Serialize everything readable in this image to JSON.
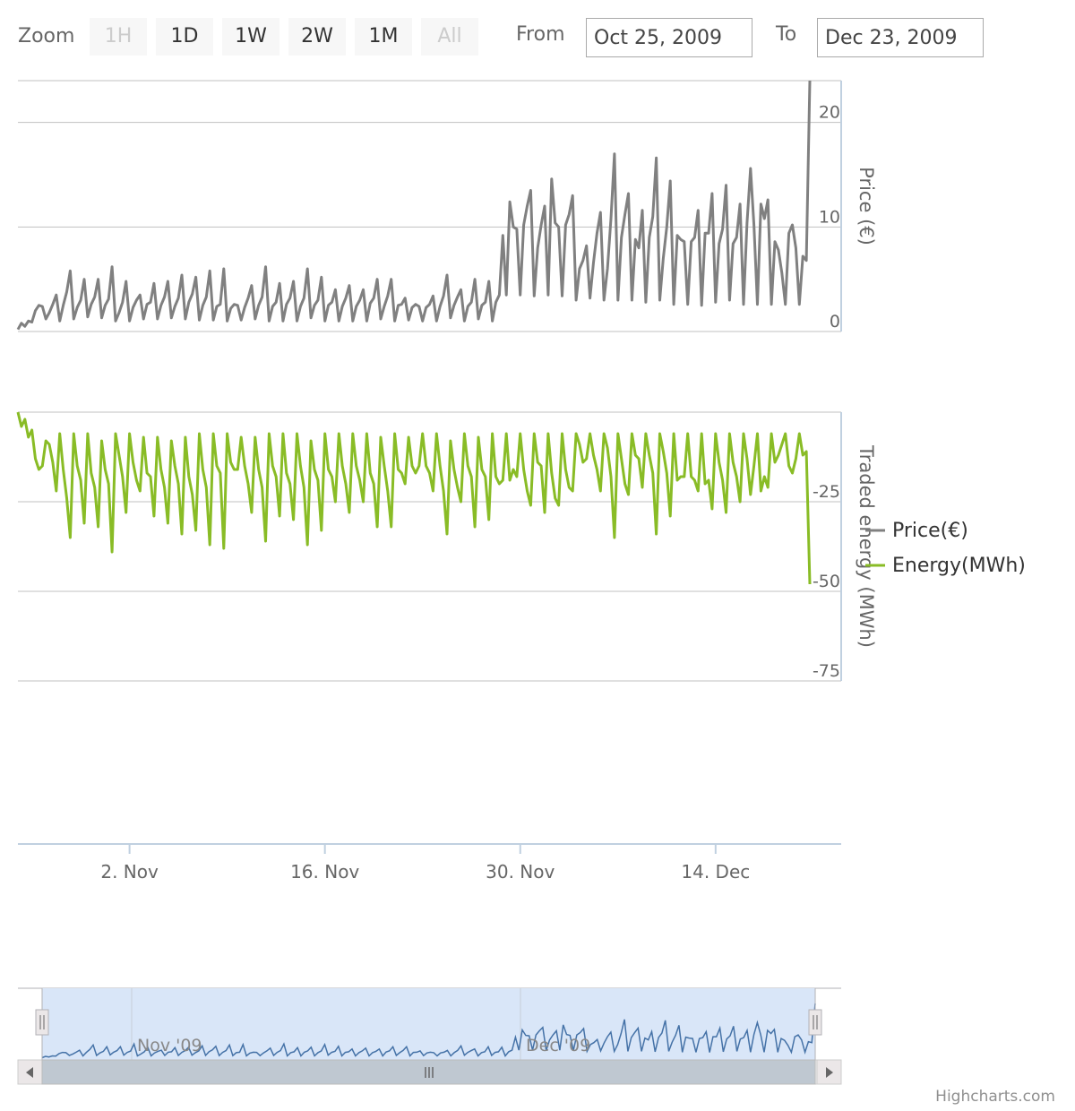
{
  "range_selector": {
    "zoom_label": "Zoom",
    "buttons": [
      {
        "label": "1H",
        "enabled": false
      },
      {
        "label": "1D",
        "enabled": true
      },
      {
        "label": "1W",
        "enabled": true
      },
      {
        "label": "2W",
        "enabled": true
      },
      {
        "label": "1M",
        "enabled": true
      },
      {
        "label": "All",
        "enabled": false
      }
    ],
    "from_label": "From",
    "from_value": "Oct 25, 2009",
    "to_label": "To",
    "to_value": "Dec 23, 2009"
  },
  "credit": "Highcharts.com",
  "colors": {
    "price": "#808080",
    "energy": "#89bc26",
    "navigator_series": "#4572a7",
    "navigator_mask": "#d9e6f8",
    "scrollbar": "#bfc8d1",
    "grid": "#c0c0c0",
    "axis": "#c0d0e0"
  },
  "chart_data": [
    {
      "type": "line",
      "title": "",
      "xlabel": "",
      "ylabel": "Price (€)",
      "ylim": [
        0,
        24
      ],
      "yticks": [
        0,
        10,
        20
      ],
      "series": [
        {
          "name": "Price(€)",
          "start": "2009-10-25",
          "step_hours": 6,
          "values": [
            0.2,
            0.8,
            0.5,
            1.0,
            0.9,
            2.0,
            2.5,
            2.4,
            1.2,
            1.8,
            2.6,
            3.5,
            1.0,
            2.5,
            3.8,
            5.8,
            1.2,
            2.3,
            3.0,
            5.0,
            1.4,
            2.6,
            3.3,
            5.0,
            1.3,
            2.5,
            3.1,
            6.2,
            1.0,
            1.8,
            2.8,
            4.8,
            1.0,
            2.3,
            3.0,
            3.5,
            1.2,
            2.6,
            2.8,
            4.6,
            1.2,
            2.5,
            3.3,
            4.8,
            1.3,
            2.4,
            3.2,
            5.4,
            1.2,
            2.8,
            3.6,
            5.2,
            1.1,
            2.5,
            3.3,
            5.8,
            1.1,
            2.4,
            2.6,
            6.0,
            1.0,
            2.2,
            2.6,
            2.5,
            1.1,
            2.3,
            3.2,
            4.4,
            1.2,
            2.5,
            3.3,
            6.2,
            1.0,
            2.4,
            2.8,
            4.6,
            1.0,
            2.6,
            3.2,
            4.8,
            1.0,
            2.4,
            3.2,
            6.0,
            1.3,
            2.5,
            3.0,
            5.2,
            1.0,
            2.5,
            2.8,
            4.0,
            1.0,
            2.4,
            3.2,
            4.4,
            1.0,
            2.4,
            3.0,
            4.0,
            1.0,
            2.7,
            3.2,
            5.0,
            1.2,
            2.4,
            3.4,
            5.0,
            1.0,
            2.5,
            2.6,
            3.2,
            1.1,
            2.3,
            2.6,
            2.4,
            1.0,
            2.3,
            2.6,
            3.4,
            1.0,
            2.4,
            3.4,
            5.4,
            1.3,
            2.5,
            3.3,
            4.0,
            1.0,
            2.4,
            2.8,
            5.0,
            1.2,
            2.5,
            2.8,
            4.8,
            1.0,
            2.8,
            3.5,
            9.2,
            3.5,
            12.4,
            10.0,
            9.8,
            3.5,
            10.2,
            12.0,
            13.5,
            3.4,
            8.0,
            10.2,
            12.0,
            3.5,
            14.6,
            10.4,
            10.0,
            3.4,
            10.2,
            11.2,
            13.0,
            3.0,
            6.0,
            6.8,
            8.2,
            3.2,
            6.6,
            9.4,
            11.4,
            3.0,
            6.0,
            10.8,
            17.0,
            3.0,
            9.0,
            11.2,
            13.2,
            3.0,
            8.8,
            8.0,
            11.6,
            2.8,
            9.0,
            11.0,
            16.6,
            3.0,
            7.0,
            10.0,
            14.4,
            2.6,
            9.2,
            8.8,
            8.6,
            2.6,
            8.6,
            9.0,
            11.6,
            2.5,
            9.4,
            9.4,
            13.2,
            2.8,
            8.4,
            9.8,
            14.0,
            3.0,
            8.4,
            9.0,
            12.2,
            2.6,
            10.4,
            15.6,
            10.2,
            2.6,
            12.2,
            10.8,
            12.6,
            2.6,
            8.6,
            7.8,
            5.6,
            2.6,
            9.4,
            10.2,
            8.0,
            2.6,
            7.2,
            6.8,
            24.0
          ]
        }
      ]
    },
    {
      "type": "line",
      "title": "",
      "xlabel": "",
      "ylabel": "Traded energy (MWh)",
      "ylim": [
        -75,
        0
      ],
      "yticks": [
        -25,
        -50,
        -75
      ],
      "series": [
        {
          "name": "Energy(MWh)",
          "start": "2009-10-25",
          "step_hours": 6,
          "values": [
            0,
            -4,
            -2,
            -7,
            -5,
            -13,
            -16,
            -15,
            -8,
            -9,
            -14,
            -22,
            -6,
            -16,
            -24,
            -35,
            -6,
            -15,
            -19,
            -31,
            -6,
            -17,
            -21,
            -32,
            -8,
            -16,
            -20,
            -39,
            -6,
            -12,
            -18,
            -28,
            -6,
            -14,
            -19,
            -22,
            -7,
            -17,
            -18,
            -29,
            -7,
            -16,
            -21,
            -31,
            -8,
            -15,
            -20,
            -34,
            -7,
            -18,
            -23,
            -33,
            -6,
            -16,
            -21,
            -37,
            -6,
            -15,
            -17,
            -38,
            -6,
            -14,
            -16,
            -16,
            -7,
            -15,
            -20,
            -28,
            -7,
            -16,
            -21,
            -36,
            -6,
            -15,
            -18,
            -29,
            -6,
            -17,
            -20,
            -30,
            -6,
            -15,
            -21,
            -37,
            -8,
            -16,
            -19,
            -33,
            -6,
            -16,
            -18,
            -25,
            -6,
            -15,
            -20,
            -28,
            -6,
            -15,
            -19,
            -25,
            -6,
            -17,
            -20,
            -32,
            -7,
            -15,
            -22,
            -32,
            -6,
            -16,
            -17,
            -20,
            -7,
            -15,
            -17,
            -15,
            -6,
            -15,
            -17,
            -22,
            -6,
            -15,
            -22,
            -34,
            -8,
            -16,
            -21,
            -25,
            -6,
            -15,
            -18,
            -32,
            -7,
            -16,
            -18,
            -30,
            -6,
            -18,
            -20,
            -19,
            -6,
            -19,
            -16,
            -18,
            -6,
            -16,
            -22,
            -26,
            -6,
            -14,
            -15,
            -28,
            -6,
            -17,
            -24,
            -26,
            -6,
            -16,
            -21,
            -22,
            -6,
            -9,
            -14,
            -13,
            -6,
            -12,
            -16,
            -22,
            -6,
            -10,
            -18,
            -35,
            -6,
            -13,
            -20,
            -23,
            -6,
            -12,
            -13,
            -21,
            -6,
            -12,
            -17,
            -34,
            -6,
            -11,
            -17,
            -29,
            -6,
            -19,
            -18,
            -18,
            -6,
            -18,
            -19,
            -22,
            -6,
            -20,
            -19,
            -27,
            -6,
            -14,
            -19,
            -28,
            -6,
            -14,
            -18,
            -25,
            -6,
            -13,
            -23,
            -15,
            -6,
            -22,
            -18,
            -21,
            -6,
            -14,
            -12,
            -9,
            -6,
            -15,
            -17,
            -13,
            -6,
            -12,
            -11,
            -48
          ]
        }
      ]
    },
    {
      "type": "area",
      "title": "",
      "xlabel": "",
      "ylabel": "",
      "role": "navigator",
      "x_tick_labels": [
        "Nov '09",
        "Dec '09"
      ],
      "series": [
        {
          "name": "",
          "start": "2009-10-25",
          "step_hours": 12,
          "values": []
        }
      ]
    }
  ],
  "x_axis": {
    "ticks": [
      {
        "label": "2. Nov",
        "date": "2009-11-02"
      },
      {
        "label": "16. Nov",
        "date": "2009-11-16"
      },
      {
        "label": "30. Nov",
        "date": "2009-11-30"
      },
      {
        "label": "14. Dec",
        "date": "2009-12-14"
      }
    ],
    "range": [
      "2009-10-25",
      "2009-12-23"
    ]
  },
  "legend": {
    "placement": "right",
    "items": [
      {
        "label": "Price(€)",
        "color": "#808080"
      },
      {
        "label": "Energy(MWh)",
        "color": "#89bc26"
      }
    ]
  }
}
